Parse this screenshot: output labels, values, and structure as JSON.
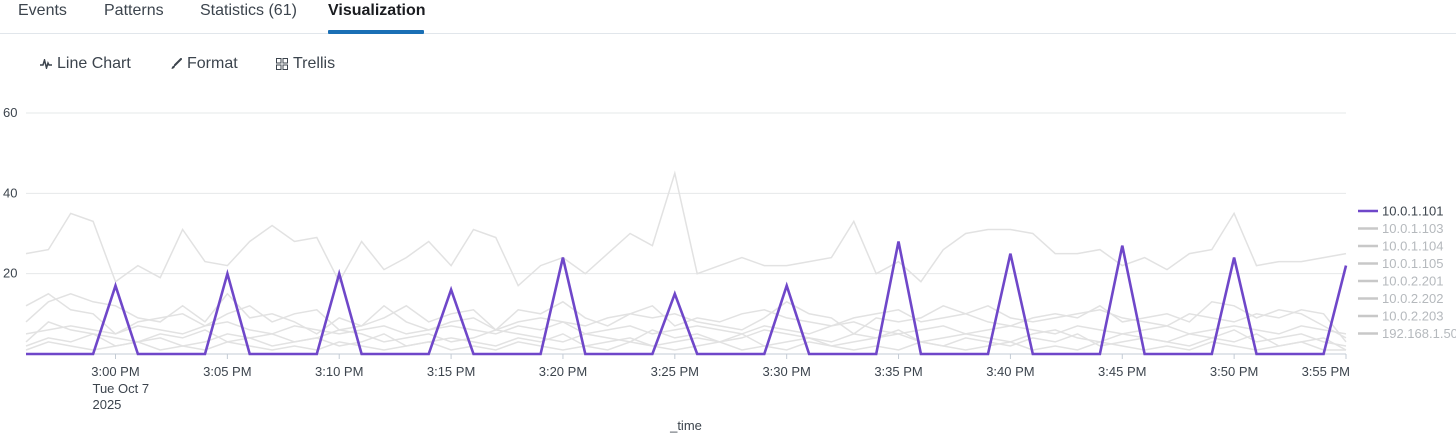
{
  "tabs": [
    {
      "label": "Events",
      "active": false
    },
    {
      "label": "Patterns",
      "active": false
    },
    {
      "label": "Statistics (61)",
      "active": false
    },
    {
      "label": "Visualization",
      "active": true
    }
  ],
  "toolbar": {
    "line_chart": {
      "label": "Line Chart",
      "icon": "line-chart-icon"
    },
    "format": {
      "label": "Format",
      "icon": "paintbrush-icon"
    },
    "trellis": {
      "label": "Trellis",
      "icon": "grid-icon"
    }
  },
  "colors": {
    "highlight": "#6f47c9",
    "muted": "#e2e2e2",
    "grid": "#e6e8ea",
    "tab_accent": "#1a6fb5"
  },
  "chart_data": {
    "type": "line",
    "xlabel": "_time",
    "ylabel": "",
    "ylim": [
      0,
      60
    ],
    "yticks": [
      20,
      40,
      60
    ],
    "grid": true,
    "legend_position": "right",
    "date_label": [
      "Tue Oct 7",
      "2025"
    ],
    "x": [
      "2:56 PM",
      "2:57 PM",
      "2:58 PM",
      "2:59 PM",
      "3:00 PM",
      "3:01 PM",
      "3:02 PM",
      "3:03 PM",
      "3:04 PM",
      "3:05 PM",
      "3:06 PM",
      "3:07 PM",
      "3:08 PM",
      "3:09 PM",
      "3:10 PM",
      "3:11 PM",
      "3:12 PM",
      "3:13 PM",
      "3:14 PM",
      "3:15 PM",
      "3:16 PM",
      "3:17 PM",
      "3:18 PM",
      "3:19 PM",
      "3:20 PM",
      "3:21 PM",
      "3:22 PM",
      "3:23 PM",
      "3:24 PM",
      "3:25 PM",
      "3:26 PM",
      "3:27 PM",
      "3:28 PM",
      "3:29 PM",
      "3:30 PM",
      "3:31 PM",
      "3:32 PM",
      "3:33 PM",
      "3:34 PM",
      "3:35 PM",
      "3:36 PM",
      "3:37 PM",
      "3:38 PM",
      "3:39 PM",
      "3:40 PM",
      "3:41 PM",
      "3:42 PM",
      "3:43 PM",
      "3:44 PM",
      "3:45 PM",
      "3:46 PM",
      "3:47 PM",
      "3:48 PM",
      "3:49 PM",
      "3:50 PM",
      "3:51 PM",
      "3:52 PM",
      "3:53 PM",
      "3:54 PM",
      "3:55 PM"
    ],
    "xticks": [
      "3:00 PM",
      "3:05 PM",
      "3:10 PM",
      "3:15 PM",
      "3:20 PM",
      "3:25 PM",
      "3:30 PM",
      "3:35 PM",
      "3:40 PM",
      "3:45 PM",
      "3:50 PM",
      "3:55 PM"
    ],
    "highlighted_series": "10.0.1.101",
    "series": [
      {
        "name": "10.0.1.101",
        "values": [
          0,
          0,
          0,
          0,
          17,
          0,
          0,
          0,
          0,
          20,
          0,
          0,
          0,
          0,
          20,
          0,
          0,
          0,
          0,
          16,
          0,
          0,
          0,
          0,
          24,
          0,
          0,
          0,
          0,
          15,
          0,
          0,
          0,
          0,
          17,
          0,
          0,
          0,
          0,
          28,
          0,
          0,
          0,
          0,
          25,
          0,
          0,
          0,
          0,
          27,
          0,
          0,
          0,
          0,
          24,
          0,
          0,
          0,
          0,
          22
        ]
      },
      {
        "name": "10.0.1.103",
        "values": [
          25,
          26,
          35,
          33,
          18,
          22,
          19,
          31,
          23,
          22,
          28,
          32,
          28,
          29,
          18,
          28,
          21,
          24,
          28,
          22,
          31,
          29,
          17,
          22,
          24,
          20,
          25,
          30,
          27,
          45,
          20,
          22,
          24,
          22,
          22,
          23,
          24,
          33,
          20,
          23,
          18,
          26,
          30,
          31,
          31,
          30,
          25,
          25,
          26,
          22,
          24,
          21,
          25,
          26,
          35,
          22,
          23,
          23,
          24,
          25
        ]
      },
      {
        "name": "10.0.1.104",
        "values": [
          8,
          13,
          15,
          13,
          12,
          9,
          8,
          12,
          8,
          15,
          9,
          10,
          8,
          5,
          9,
          7,
          12,
          8,
          6,
          8,
          9,
          6,
          11,
          10,
          13,
          9,
          7,
          10,
          9,
          10,
          8,
          7,
          6,
          9,
          13,
          10,
          9,
          5,
          9,
          8,
          9,
          12,
          10,
          8,
          7,
          9,
          10,
          9,
          12,
          8,
          9,
          10,
          8,
          13,
          12,
          9,
          11,
          10,
          7,
          4
        ]
      },
      {
        "name": "10.0.1.105",
        "values": [
          12,
          15,
          11,
          10,
          5,
          8,
          9,
          10,
          7,
          10,
          12,
          8,
          10,
          11,
          6,
          7,
          9,
          12,
          8,
          10,
          11,
          6,
          8,
          9,
          8,
          7,
          9,
          10,
          12,
          7,
          9,
          8,
          10,
          11,
          9,
          8,
          7,
          9,
          10,
          11,
          8,
          9,
          10,
          12,
          9,
          8,
          9,
          10,
          11,
          9,
          8,
          7,
          10,
          9,
          8,
          10,
          9,
          11,
          10,
          3
        ]
      },
      {
        "name": "10.0.2.201",
        "values": [
          3,
          8,
          6,
          5,
          4,
          3,
          5,
          4,
          6,
          3,
          4,
          5,
          3,
          4,
          6,
          5,
          3,
          4,
          5,
          3,
          4,
          6,
          5,
          4,
          3,
          5,
          4,
          3,
          6,
          4,
          5,
          3,
          4,
          6,
          5,
          4,
          3,
          5,
          4,
          6,
          3,
          4,
          5,
          4,
          3,
          5,
          6,
          4,
          3,
          5,
          4,
          3,
          5,
          4,
          6,
          3,
          4,
          5,
          3,
          2
        ]
      },
      {
        "name": "10.0.2.202",
        "values": [
          2,
          4,
          3,
          5,
          2,
          3,
          4,
          2,
          3,
          5,
          4,
          2,
          3,
          4,
          2,
          3,
          5,
          2,
          3,
          4,
          3,
          2,
          4,
          3,
          5,
          2,
          3,
          4,
          2,
          3,
          4,
          3,
          5,
          2,
          3,
          4,
          2,
          3,
          4,
          5,
          3,
          2,
          4,
          3,
          2,
          4,
          3,
          5,
          2,
          3,
          4,
          3,
          2,
          4,
          3,
          5,
          2,
          3,
          4,
          1
        ]
      },
      {
        "name": "10.0.2.203",
        "values": [
          5,
          6,
          7,
          6,
          5,
          7,
          6,
          5,
          7,
          8,
          6,
          5,
          7,
          6,
          5,
          6,
          7,
          5,
          6,
          7,
          6,
          5,
          7,
          6,
          8,
          5,
          6,
          7,
          5,
          6,
          7,
          6,
          5,
          7,
          6,
          5,
          7,
          8,
          6,
          5,
          6,
          7,
          5,
          6,
          7,
          6,
          5,
          7,
          6,
          5,
          6,
          7,
          5,
          6,
          7,
          6,
          5,
          7,
          6,
          5
        ]
      },
      {
        "name": "192.168.1.50",
        "values": [
          1,
          3,
          2,
          1,
          2,
          3,
          1,
          2,
          1,
          3,
          2,
          1,
          2,
          1,
          3,
          2,
          1,
          2,
          3,
          1,
          2,
          1,
          3,
          2,
          1,
          2,
          1,
          3,
          2,
          1,
          2,
          3,
          1,
          2,
          1,
          3,
          2,
          1,
          2,
          1,
          3,
          2,
          1,
          2,
          3,
          1,
          2,
          1,
          3,
          2,
          1,
          2,
          1,
          3,
          2,
          1,
          2,
          3,
          1,
          1
        ]
      }
    ]
  }
}
